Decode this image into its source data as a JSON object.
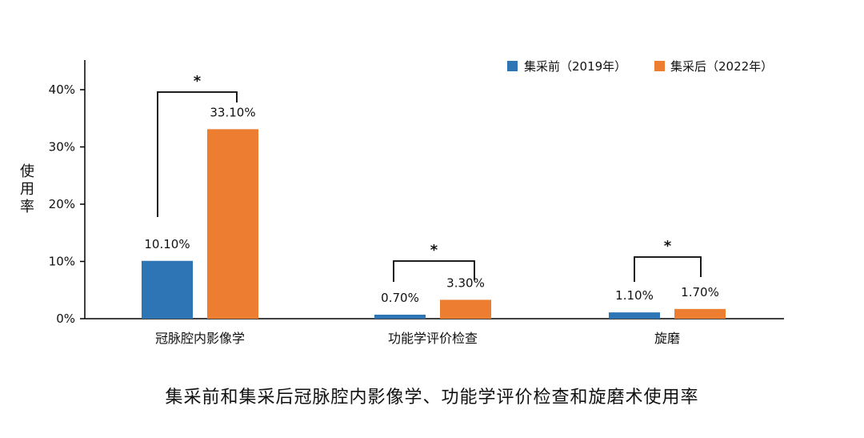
{
  "colors": {
    "series_before": "#2E75B6",
    "series_after": "#ED7D31",
    "axis": "#000000",
    "text": "#111111"
  },
  "chart_data": {
    "type": "bar",
    "title": "",
    "xlabel": "",
    "ylabel": "使用率",
    "ylim": [
      0,
      45
    ],
    "yticks": [
      "0%",
      "10%",
      "20%",
      "30%",
      "40%"
    ],
    "ytick_values": [
      0,
      10,
      20,
      30,
      40
    ],
    "categories": [
      "冠脉腔内影像学",
      "功能学评价检查",
      "旋磨"
    ],
    "series": [
      {
        "name": "集采前（2019年）",
        "values": [
          10.1,
          0.7,
          1.1
        ],
        "labels": [
          "10.10%",
          "0.70%",
          "1.10%"
        ],
        "color": "#2E75B6"
      },
      {
        "name": "集采后（2022年）",
        "values": [
          33.1,
          3.3,
          1.7
        ],
        "labels": [
          "33.10%",
          "3.30%",
          "1.70%"
        ],
        "color": "#ED7D31"
      }
    ],
    "significance": [
      "*",
      "*",
      "*"
    ],
    "legend_position": "top-right",
    "grid": false
  },
  "caption": "集采前和集采后冠脉腔内影像学、功能学评价检查和旋磨术使用率"
}
